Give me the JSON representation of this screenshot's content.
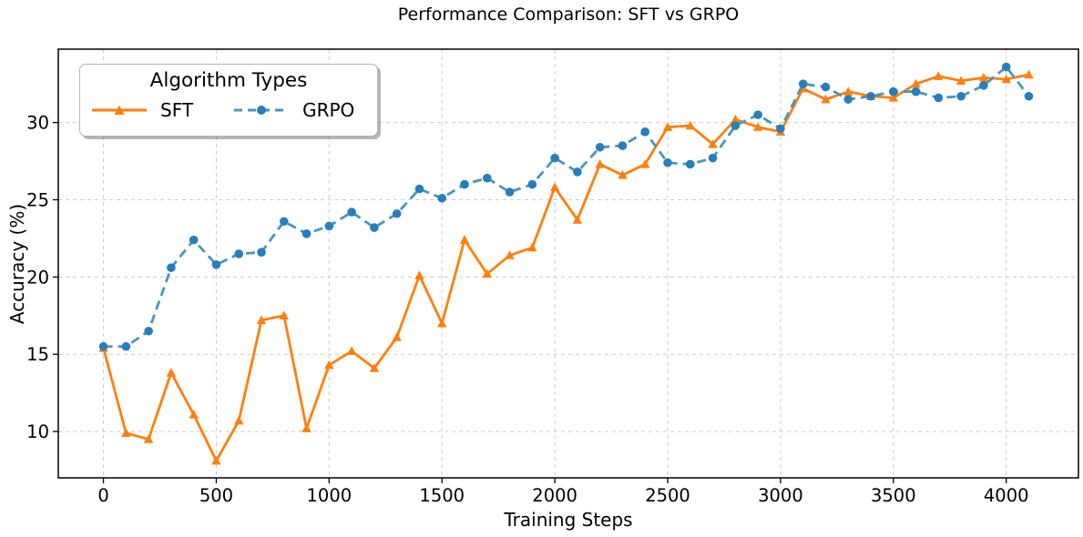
{
  "figure": {
    "background": "#ffffff"
  },
  "chart_data": {
    "type": "line",
    "title": "Performance Comparison: SFT vs GRPO",
    "xlabel": "Training Steps",
    "ylabel": "Accuracy (%)",
    "legend": {
      "title": "Algorithm Types",
      "position": "upper-left"
    },
    "grid": true,
    "grid_color": "#cccccc",
    "axis_color": "#000000",
    "xlim": [
      -200,
      4320
    ],
    "ylim": [
      7.0,
      34.75
    ],
    "x_ticks": [
      0,
      500,
      1000,
      1500,
      2000,
      2500,
      3000,
      3500,
      4000
    ],
    "y_ticks": [
      10,
      15,
      20,
      25,
      30
    ],
    "x": [
      0,
      100,
      200,
      300,
      400,
      500,
      600,
      700,
      800,
      900,
      1000,
      1100,
      1200,
      1300,
      1400,
      1500,
      1600,
      1700,
      1800,
      1900,
      2000,
      2100,
      2200,
      2300,
      2400,
      2500,
      2600,
      2700,
      2800,
      2900,
      3000,
      3100,
      3200,
      3300,
      3400,
      3500,
      3600,
      3700,
      3800,
      3900,
      4000,
      4100
    ],
    "series": [
      {
        "name": "SFT",
        "color": "#ff7f0e",
        "marker_color": "#ff7f0e",
        "line_style": "solid",
        "marker": "triangle-up",
        "values": [
          15.4,
          9.9,
          9.5,
          13.8,
          11.1,
          8.1,
          10.7,
          17.2,
          17.5,
          10.2,
          14.3,
          15.2,
          14.1,
          16.1,
          20.1,
          17.0,
          22.4,
          20.2,
          21.4,
          21.9,
          25.8,
          23.7,
          27.3,
          26.6,
          27.3,
          29.7,
          29.8,
          28.6,
          30.2,
          29.7,
          29.4,
          32.2,
          31.5,
          32.0,
          31.7,
          31.6,
          32.5,
          33.0,
          32.7,
          32.9,
          32.8,
          33.1
        ]
      },
      {
        "name": "GRPO",
        "color": "#4696c3",
        "marker_color": "#277fb9",
        "line_style": "dashed",
        "marker": "circle",
        "values": [
          15.5,
          15.5,
          16.5,
          20.6,
          22.4,
          20.8,
          21.5,
          21.6,
          23.6,
          22.8,
          23.3,
          24.2,
          23.2,
          24.1,
          25.7,
          25.1,
          26.0,
          26.4,
          25.5,
          26.0,
          27.7,
          26.8,
          28.4,
          28.5,
          29.4,
          27.4,
          27.3,
          27.7,
          29.8,
          30.5,
          29.6,
          32.5,
          32.3,
          31.5,
          31.7,
          32.0,
          32.0,
          31.6,
          31.7,
          32.4,
          33.6,
          31.7
        ]
      }
    ]
  }
}
